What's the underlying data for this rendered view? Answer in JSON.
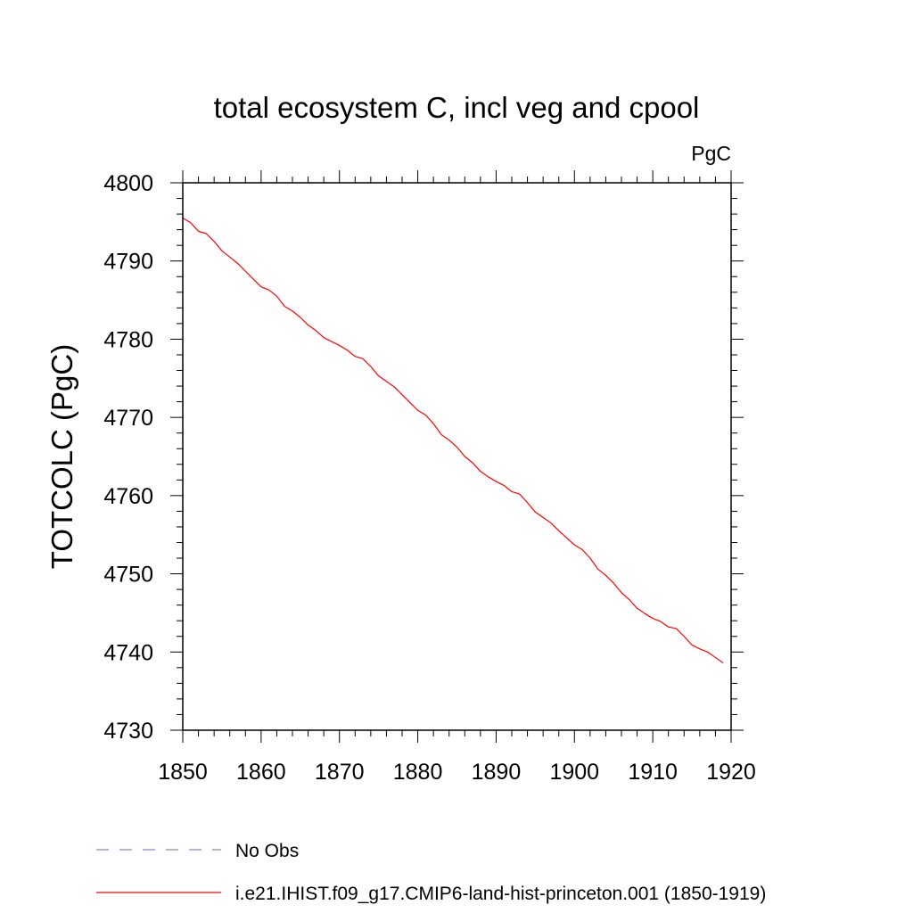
{
  "chart_data": {
    "type": "line",
    "title": "total ecosystem C, incl veg and cpool",
    "units_label": "PgC",
    "ylabel": "TOTCOLC  (PgC)",
    "xlabel": "",
    "xlim": [
      1850,
      1920
    ],
    "ylim": [
      4730,
      4800
    ],
    "x_ticks": [
      1850,
      1860,
      1870,
      1880,
      1890,
      1900,
      1910,
      1920
    ],
    "y_ticks": [
      4730,
      4740,
      4750,
      4760,
      4770,
      4780,
      4790,
      4800
    ],
    "x_tick_labels": [
      "1850",
      "1860",
      "1870",
      "1880",
      "1890",
      "1900",
      "1910",
      "1920"
    ],
    "y_tick_labels": [
      "4730",
      "4740",
      "4750",
      "4760",
      "4770",
      "4780",
      "4790",
      "4800"
    ],
    "grid": false,
    "legend_position": "bottom",
    "series": [
      {
        "name": "No Obs",
        "color": "#8a84c8",
        "style": "dashed",
        "x": [],
        "y": []
      },
      {
        "name": "i.e21.IHIST.f09_g17.CMIP6-land-hist-princeton.001 (1850-1919)",
        "color": "#ff0000",
        "style": "solid",
        "x": [
          1850,
          1851,
          1852,
          1853,
          1854,
          1855,
          1856,
          1857,
          1858,
          1859,
          1860,
          1861,
          1862,
          1863,
          1864,
          1865,
          1866,
          1867,
          1868,
          1869,
          1870,
          1871,
          1872,
          1873,
          1874,
          1875,
          1876,
          1877,
          1878,
          1879,
          1880,
          1881,
          1882,
          1883,
          1884,
          1885,
          1886,
          1887,
          1888,
          1889,
          1890,
          1891,
          1892,
          1893,
          1894,
          1895,
          1896,
          1897,
          1898,
          1899,
          1900,
          1901,
          1902,
          1903,
          1904,
          1905,
          1906,
          1907,
          1908,
          1909,
          1910,
          1911,
          1912,
          1913,
          1914,
          1915,
          1916,
          1917,
          1918,
          1919
        ],
        "y": [
          4795.5,
          4794.9,
          4793.8,
          4793.5,
          4792.5,
          4791.3,
          4790.5,
          4789.7,
          4788.7,
          4787.7,
          4786.7,
          4786.3,
          4785.5,
          4784.2,
          4783.6,
          4782.8,
          4781.8,
          4781.1,
          4780.2,
          4779.7,
          4779.2,
          4778.6,
          4777.8,
          4777.5,
          4776.5,
          4775.3,
          4774.6,
          4773.9,
          4772.9,
          4771.9,
          4770.9,
          4770.3,
          4769.2,
          4767.8,
          4767.1,
          4766.2,
          4765.0,
          4764.2,
          4763.1,
          4762.4,
          4761.8,
          4761.3,
          4760.5,
          4760.2,
          4759.1,
          4757.9,
          4757.2,
          4756.5,
          4755.5,
          4754.6,
          4753.7,
          4753.1,
          4752.0,
          4750.6,
          4749.8,
          4748.8,
          4747.6,
          4746.7,
          4745.6,
          4744.9,
          4744.3,
          4743.9,
          4743.2,
          4743.0,
          4742.0,
          4740.9,
          4740.4,
          4740.0,
          4739.3,
          4738.6
        ]
      }
    ]
  }
}
